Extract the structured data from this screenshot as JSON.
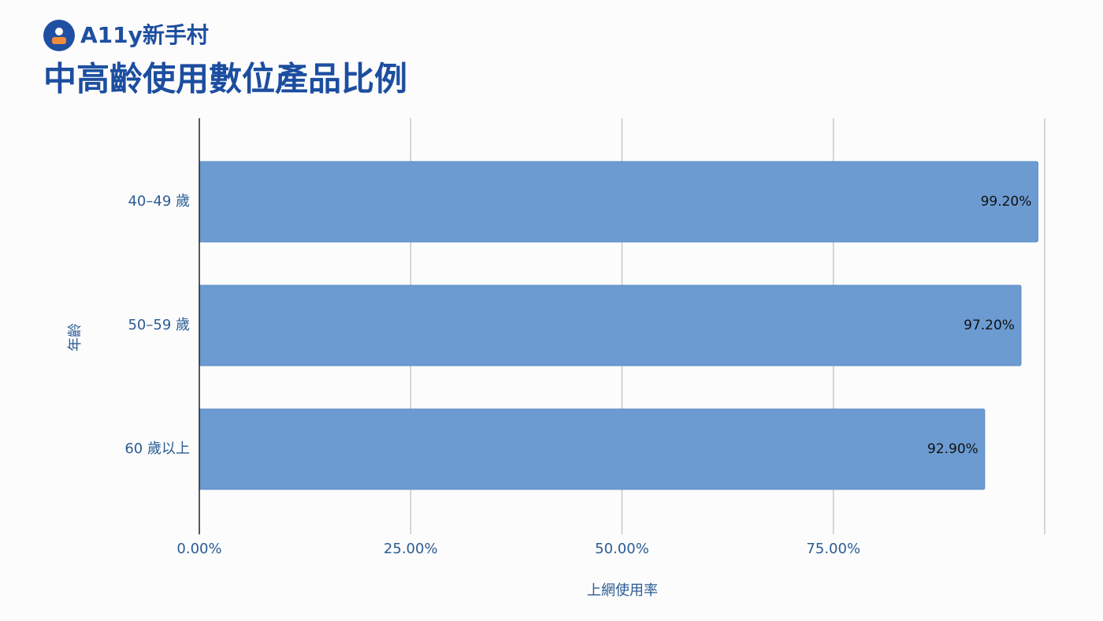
{
  "brand": "A11y新手村",
  "chart_data": {
    "type": "bar",
    "orientation": "horizontal",
    "title": "中高齡使用數位產品比例",
    "categories": [
      "40–49 歲",
      "50–59 歲",
      "60 歲以上"
    ],
    "values": [
      99.2,
      97.2,
      92.9
    ],
    "value_labels": [
      "99.20%",
      "97.20%",
      "92.90%"
    ],
    "color": "#6b9bd1",
    "xlabel": "上網使用率",
    "ylabel": "年齡",
    "xlim": [
      0,
      100
    ],
    "xticks": [
      {
        "value": 0,
        "label": "0.00%"
      },
      {
        "value": 25,
        "label": "25.00%"
      },
      {
        "value": 50,
        "label": "50.00%"
      },
      {
        "value": 75,
        "label": "75.00%"
      }
    ],
    "grid": true
  }
}
